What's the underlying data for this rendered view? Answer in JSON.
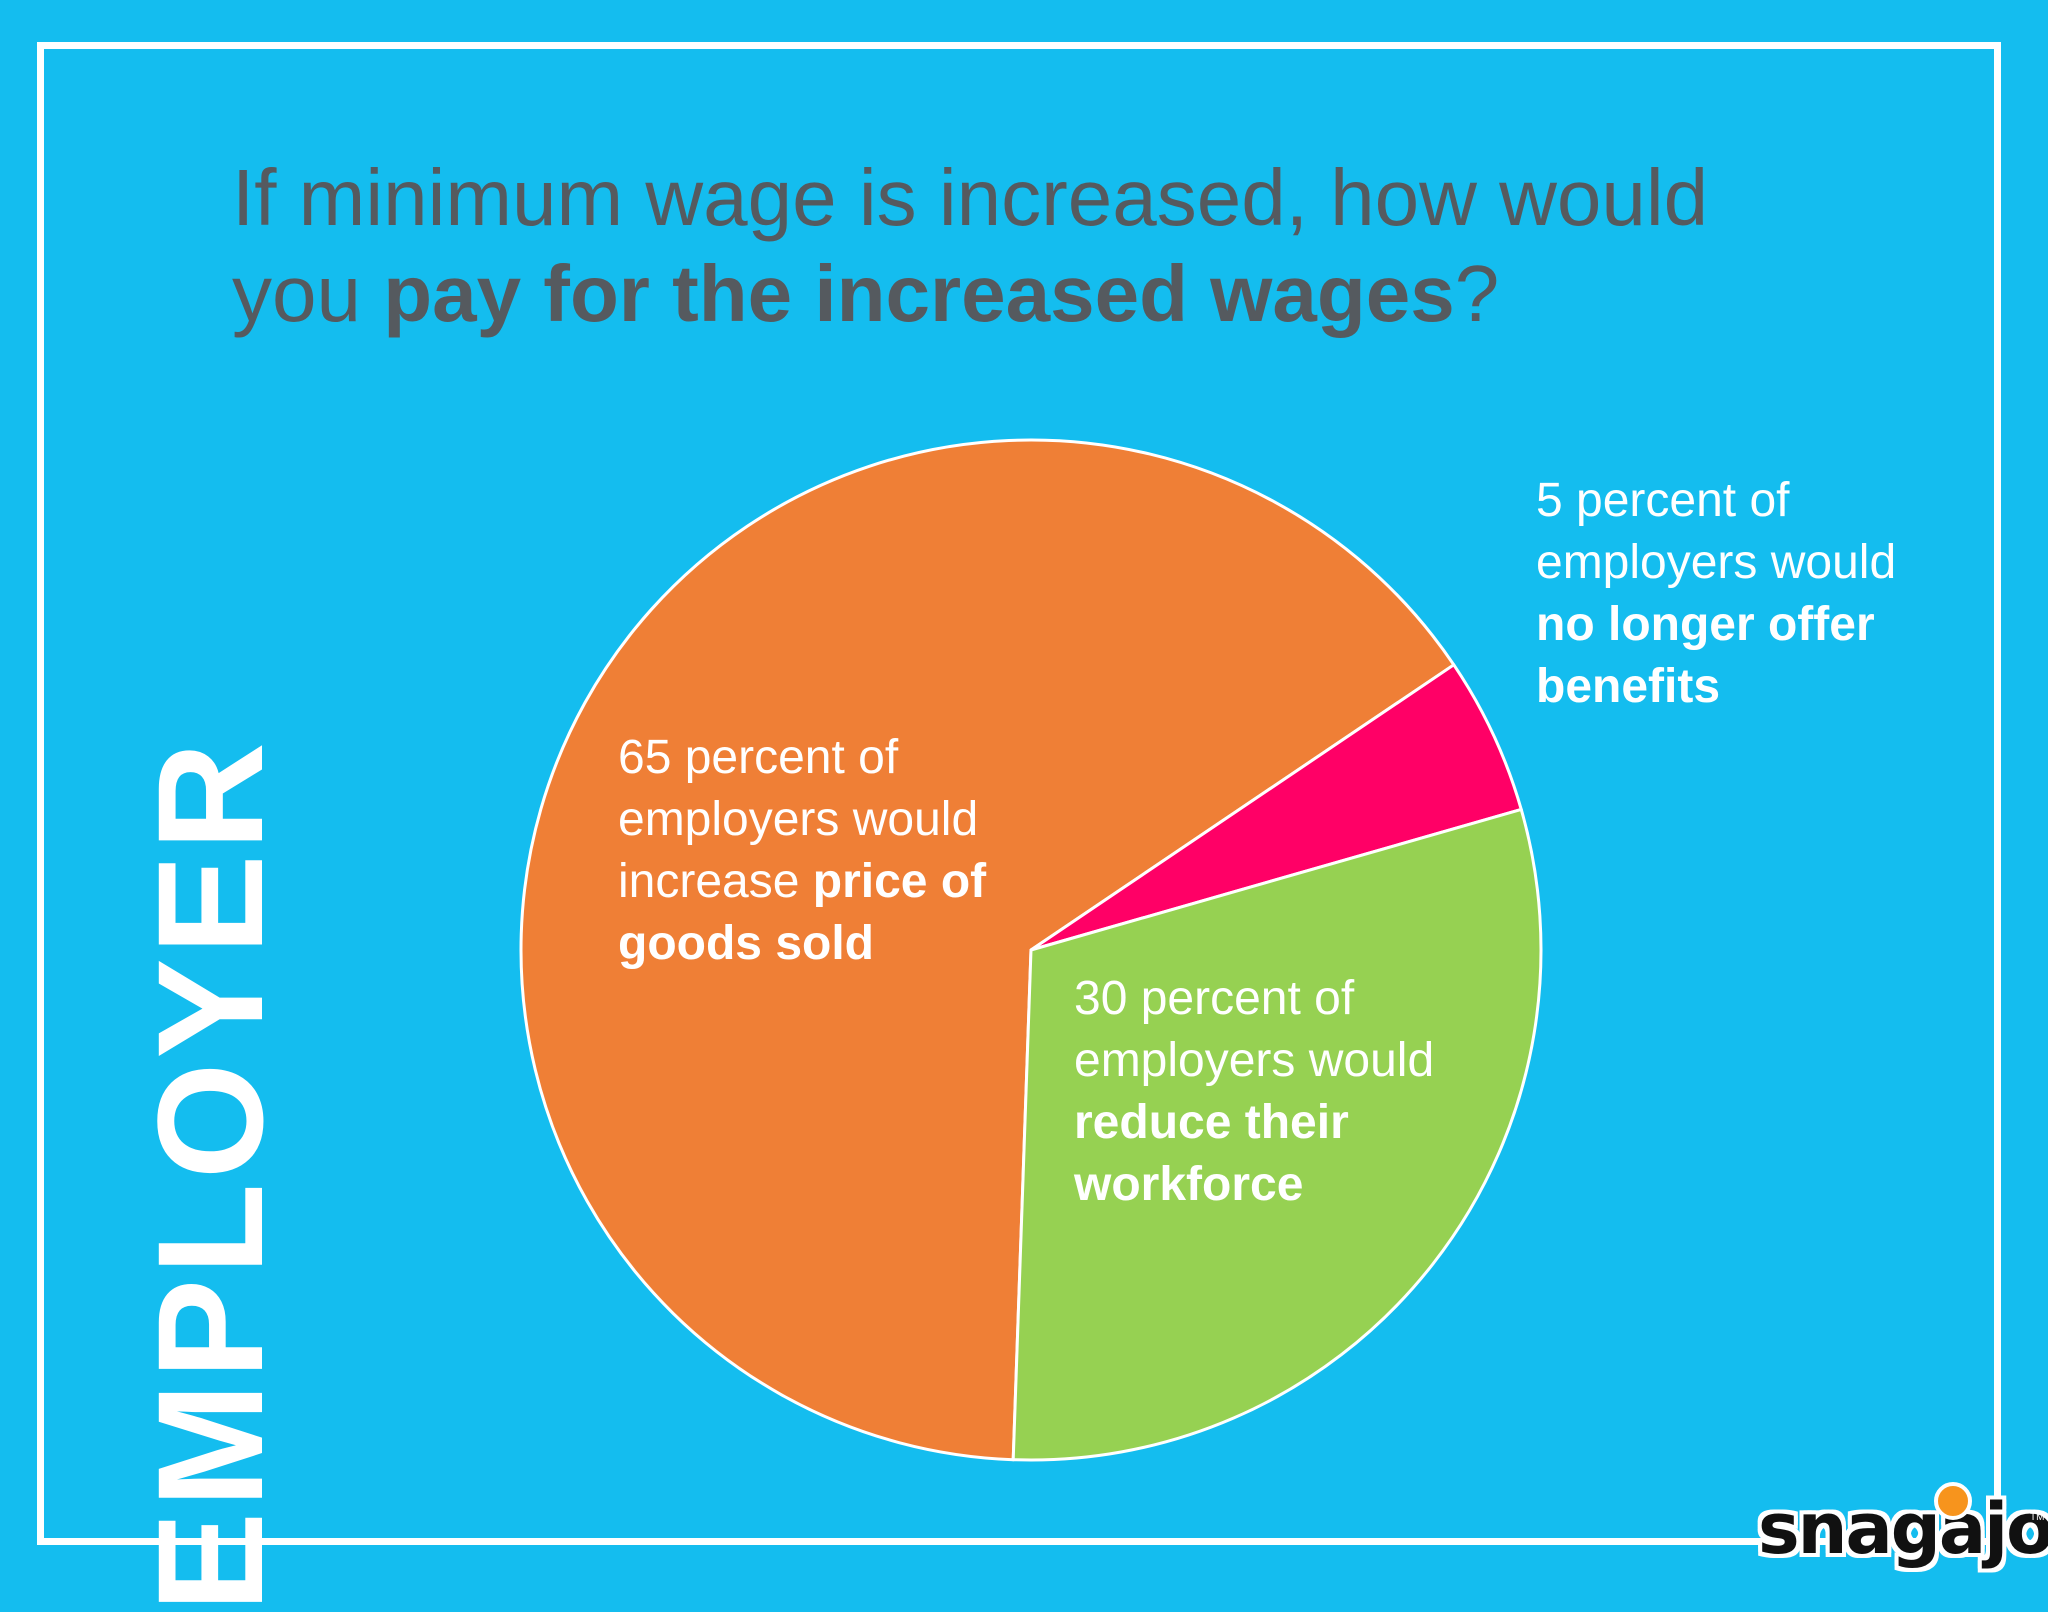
{
  "title": {
    "line1": "If minimum wage is increased, how would",
    "line2_prefix": "you ",
    "line2_bold": "pay for the increased wages",
    "line2_suffix": "?"
  },
  "side_label": "EMPLOYER",
  "logo": {
    "text": "snagajob",
    "tm": "TM"
  },
  "colors": {
    "background": "#14bdef",
    "orange": "#ef7f36",
    "pink": "#ff0066",
    "green": "#96d152",
    "title_text": "#555a5f"
  },
  "chart_data": {
    "type": "pie",
    "title": "If minimum wage is increased, how would you pay for the increased wages?",
    "slices": [
      {
        "value": 65,
        "color": "#ef7f36",
        "label_plain": [
          "65 percent of",
          "employers would",
          "increase "
        ],
        "label_bold": [
          "price of",
          "goods sold"
        ]
      },
      {
        "value": 5,
        "color": "#ff0066",
        "label_plain": [
          "5 percent of",
          "employers would"
        ],
        "label_bold": [
          "no longer offer",
          "benefits"
        ]
      },
      {
        "value": 30,
        "color": "#96d152",
        "label_plain": [
          "30 percent of",
          "employers would"
        ],
        "label_bold": [
          "reduce their",
          "workforce"
        ]
      }
    ]
  }
}
